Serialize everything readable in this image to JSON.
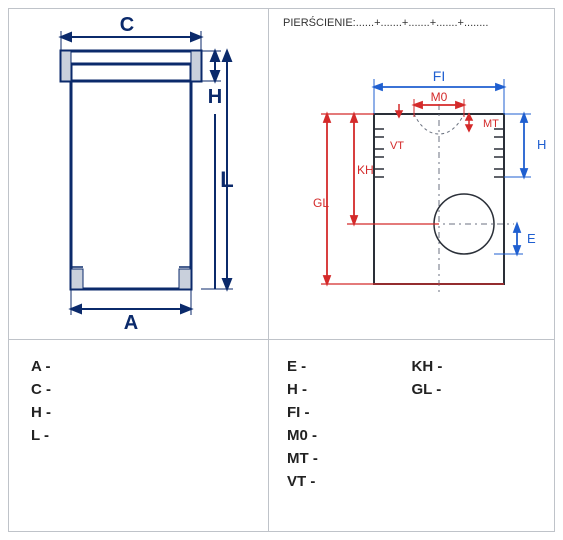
{
  "header": {
    "label": "PIERŚCIENIE:",
    "dots": "......+.......+.......+.......+........"
  },
  "left_diagram": {
    "type": "diagram",
    "labels": {
      "C": "C",
      "H": "H",
      "L": "L",
      "A": "A"
    },
    "colors": {
      "outline": "#0b2a6b",
      "shade": "#c9d0dc",
      "text": "#0b2a6b",
      "arrow": "#0b2a6b"
    },
    "strokes": {
      "outline": 2,
      "arrow": 1.5
    },
    "fontsize": 18
  },
  "right_diagram": {
    "type": "diagram",
    "labels": {
      "FI": "FI",
      "M0": "M0",
      "MT": "MT",
      "VT": "VT",
      "KH": "KH",
      "GL": "GL",
      "H": "H",
      "E": "E"
    },
    "colors": {
      "outline": "#2a2f38",
      "red": "#d42a2a",
      "blue": "#1f5fd0",
      "dash": "#6b7280",
      "bg": "#ffffff"
    },
    "strokes": {
      "outline": 1.5,
      "red": 1.8,
      "blue": 1.8,
      "dash": 1
    },
    "fontsize_blue": 13,
    "fontsize_red": 13
  },
  "params_left": [
    {
      "k": "A",
      "v": "-"
    },
    {
      "k": "C",
      "v": "-"
    },
    {
      "k": "H",
      "v": "-"
    },
    {
      "k": "L",
      "v": "-"
    }
  ],
  "params_right_col1": [
    {
      "k": "E",
      "v": "-"
    },
    {
      "k": "H",
      "v": "-"
    },
    {
      "k": "FI",
      "v": "-"
    },
    {
      "k": "M0",
      "v": "-"
    },
    {
      "k": "MT",
      "v": "-"
    },
    {
      "k": "VT",
      "v": "-"
    }
  ],
  "params_right_col2": [
    {
      "k": "KH",
      "v": "-"
    },
    {
      "k": "GL",
      "v": "-"
    }
  ]
}
